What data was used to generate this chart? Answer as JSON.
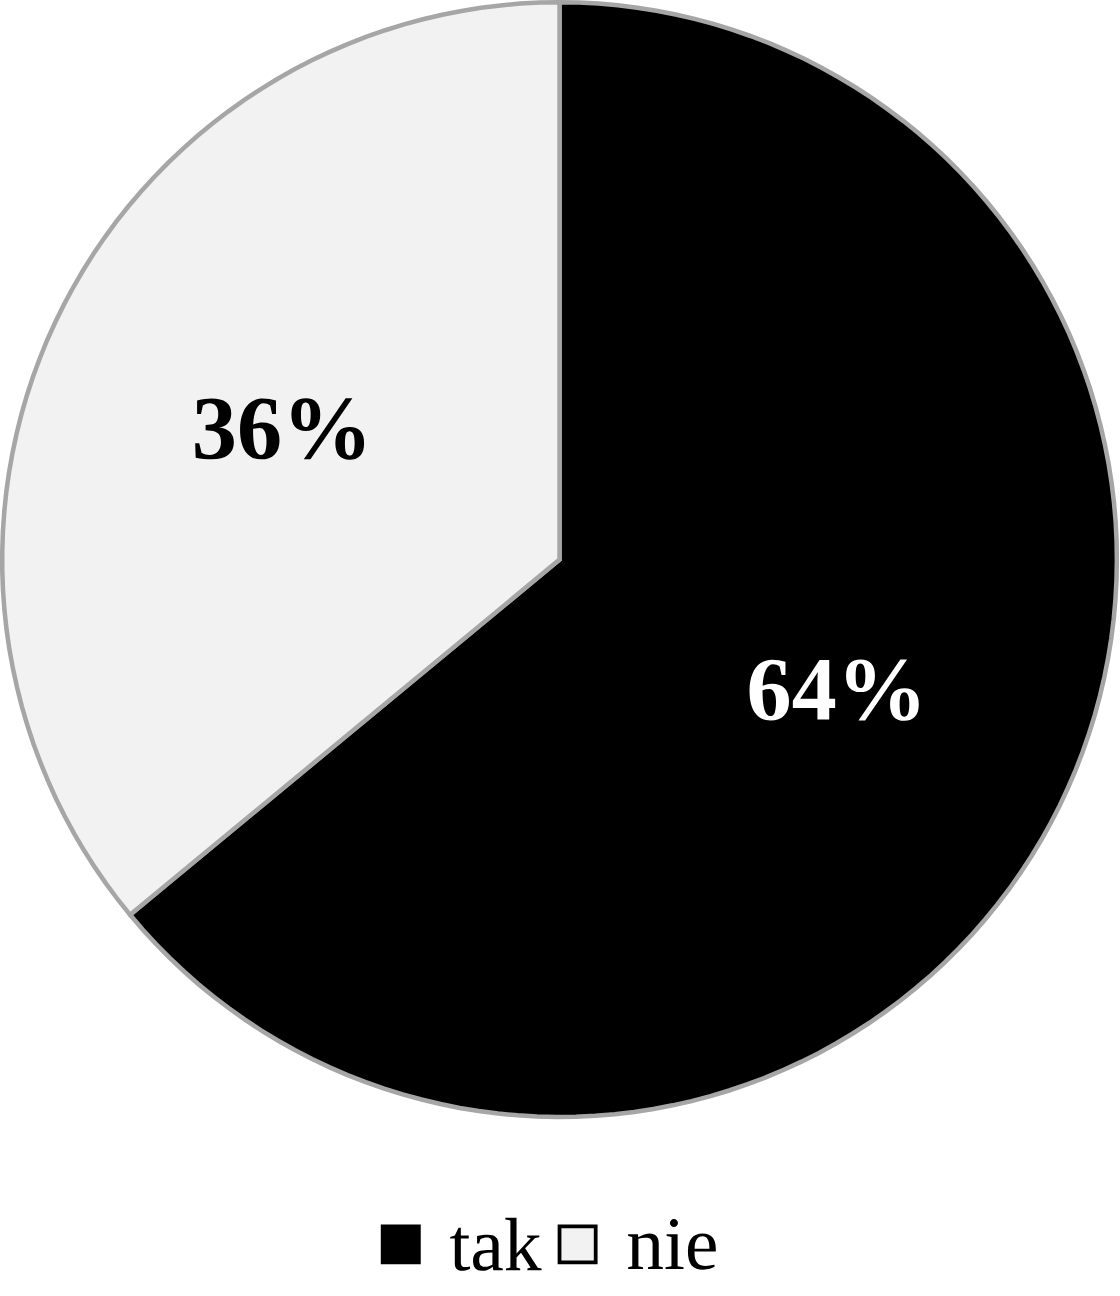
{
  "chart_data": {
    "type": "pie",
    "categories": [
      "tak",
      "nie"
    ],
    "values": [
      64,
      36
    ],
    "colors": [
      "#000000",
      "#f2f2f2"
    ],
    "value_labels": [
      "64%",
      "36%"
    ],
    "legend": "bottom"
  }
}
